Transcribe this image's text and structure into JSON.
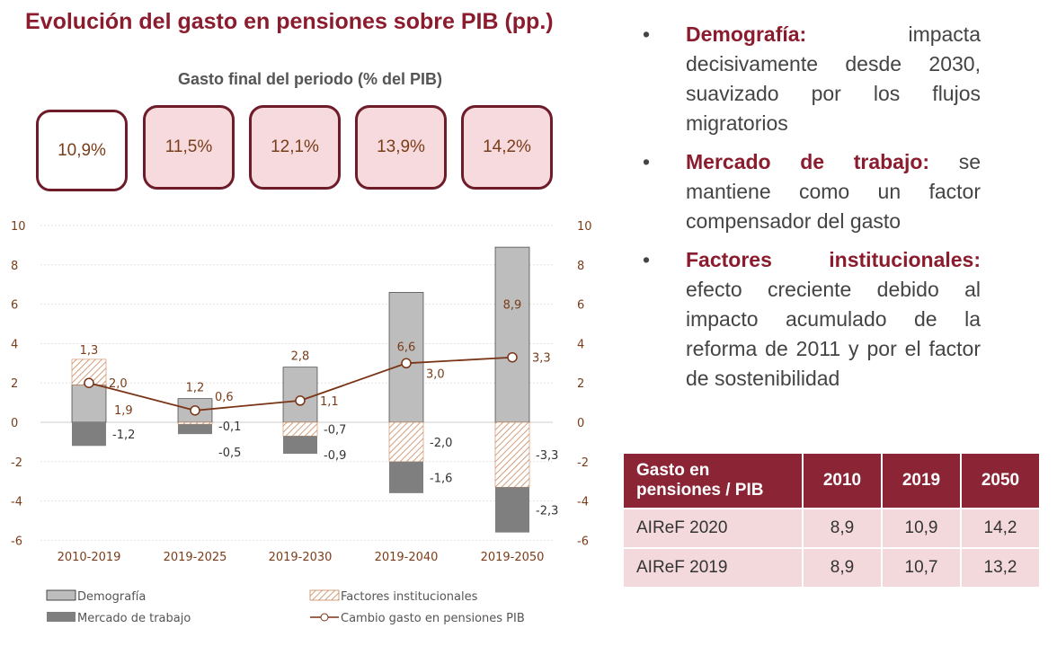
{
  "title": "Evolución del gasto en pensiones sobre PIB (pp.)",
  "subtitle": "Gasto final del periodo (% del PIB)",
  "final_boxes": [
    "10,9%",
    "11,5%",
    "12,1%",
    "13,9%",
    "14,2%"
  ],
  "chart_data": {
    "type": "bar",
    "stacked": true,
    "categories": [
      "2010-2019",
      "2019-2025",
      "2019-2030",
      "2019-2040",
      "2019-2050"
    ],
    "ylim": [
      -6,
      10
    ],
    "yticks": [
      10,
      8,
      6,
      4,
      2,
      0,
      -2,
      -4,
      -6
    ],
    "ytick_labels": [
      "10",
      "8",
      "6",
      "4",
      "2",
      "0",
      "-2",
      "-4",
      "-6"
    ],
    "grid": true,
    "legend_position": "bottom",
    "series": [
      {
        "name": "Demografía",
        "type": "bar",
        "color": "#bdbdbd",
        "values": [
          1.9,
          1.2,
          2.8,
          6.6,
          8.9
        ],
        "labels": [
          "1,9",
          "1,2",
          "2,8",
          "6,6",
          "8,9"
        ]
      },
      {
        "name": "Factores institucionales",
        "type": "bar",
        "pattern": "hatch",
        "color": "#c8875a",
        "values": [
          1.3,
          -0.1,
          -0.7,
          -2.0,
          -3.3
        ],
        "labels": [
          "1,3",
          "-0,1",
          "-0,7",
          "-2,0",
          "-3,3"
        ]
      },
      {
        "name": "Mercado de trabajo",
        "type": "bar",
        "color": "#7f7f7f",
        "values": [
          -1.2,
          -0.5,
          -0.9,
          -1.6,
          -2.3
        ],
        "labels": [
          "-1,2",
          "-0,5",
          "-0,9",
          "-1,6",
          "-2,3"
        ]
      },
      {
        "name": "Cambio gasto en pensiones PIB",
        "type": "line",
        "color": "#7a3416",
        "values": [
          2.0,
          0.6,
          1.1,
          3.0,
          3.3
        ],
        "labels": [
          "2,0",
          "0,6",
          "1,1",
          "3,0",
          "3,3"
        ]
      }
    ]
  },
  "bullets": [
    {
      "title": "Demografía:",
      "text": " impacta decisivamente desde 2030, suavizado por los flujos migratorios"
    },
    {
      "title": "Mercado de trabajo:",
      "text": " se mantiene como un factor compensador del gasto"
    },
    {
      "title": "Factores institucionales:",
      "text": " efecto creciente debido al impacto acumulado de la reforma de 2011 y por el factor de sostenibilidad"
    }
  ],
  "bullet_symbol": "•",
  "table": {
    "headers": [
      "Gasto en pensiones / PIB",
      "2010",
      "2019",
      "2050"
    ],
    "rows": [
      [
        "AIReF 2020",
        "8,9",
        "10,9",
        "14,2"
      ],
      [
        "AIReF 2019",
        "8,9",
        "10,7",
        "13,2"
      ]
    ]
  }
}
